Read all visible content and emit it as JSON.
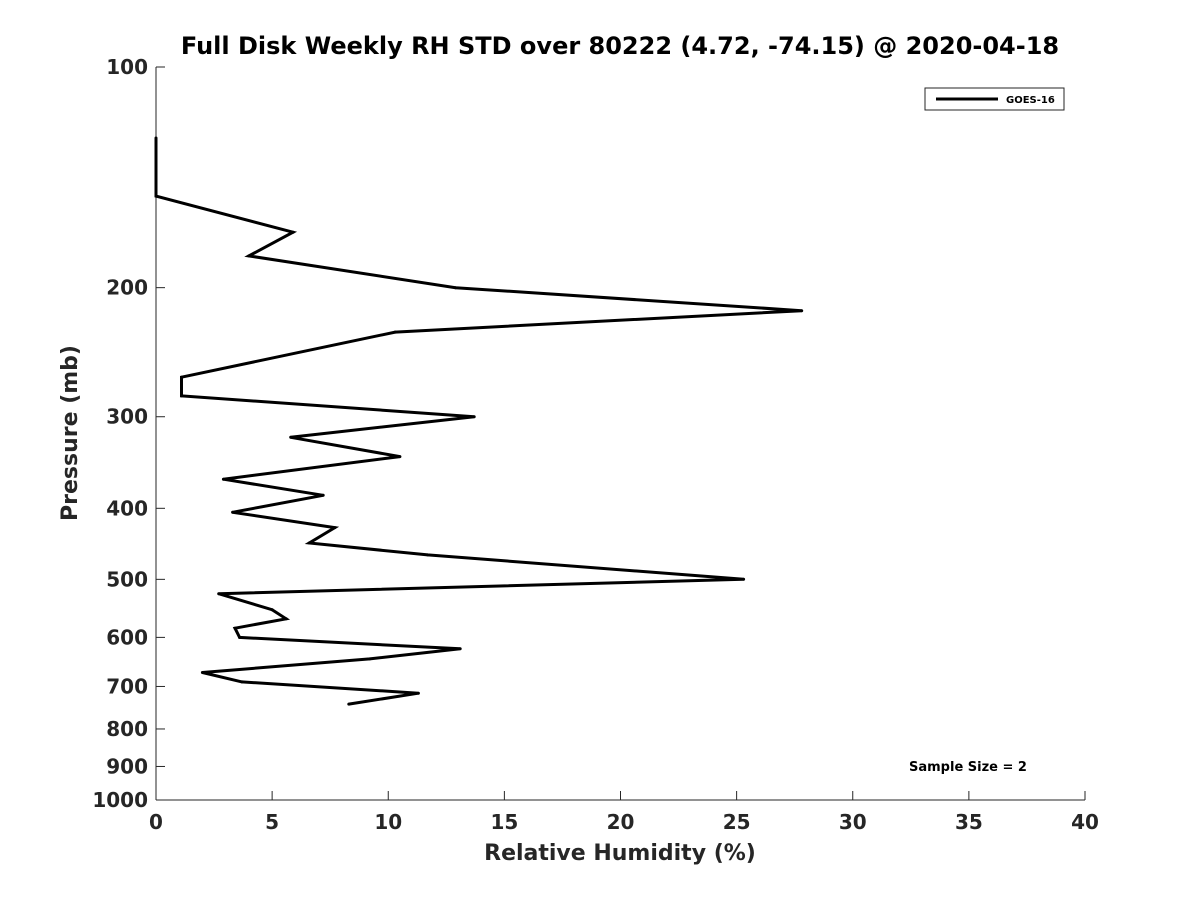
{
  "chart_data": {
    "type": "line",
    "title": "Full Disk Weekly RH STD over 80222 (4.72, -74.15) @ 2020-04-18",
    "xlabel": "Relative Humidity (%)",
    "ylabel": "Pressure (mb)",
    "xlim": [
      0,
      40
    ],
    "ylim": [
      100,
      1000
    ],
    "y_scale": "log",
    "y_reversed": true,
    "x_ticks": [
      0,
      5,
      10,
      15,
      20,
      25,
      30,
      35,
      40
    ],
    "x_tick_labels": [
      "0",
      "5",
      "10",
      "15",
      "20",
      "25",
      "30",
      "35",
      "40"
    ],
    "y_ticks": [
      100,
      200,
      300,
      400,
      500,
      600,
      700,
      800,
      900,
      1000
    ],
    "y_tick_labels": [
      "100",
      "200",
      "300",
      "400",
      "500",
      "600",
      "700",
      "800",
      "900",
      "1000"
    ],
    "grid": false,
    "legend": {
      "position": "top-right",
      "entries": [
        "GOES-16"
      ]
    },
    "annotation": "Sample Size = 2",
    "series": [
      {
        "name": "GOES-16",
        "color": "#000000",
        "points": [
          {
            "x": 0.0,
            "y": 125
          },
          {
            "x": 0.0,
            "y": 150
          },
          {
            "x": 5.9,
            "y": 168
          },
          {
            "x": 4.0,
            "y": 181
          },
          {
            "x": 12.9,
            "y": 200
          },
          {
            "x": 27.8,
            "y": 215
          },
          {
            "x": 10.3,
            "y": 230
          },
          {
            "x": 1.1,
            "y": 265
          },
          {
            "x": 1.1,
            "y": 281
          },
          {
            "x": 13.7,
            "y": 300
          },
          {
            "x": 5.8,
            "y": 320
          },
          {
            "x": 10.5,
            "y": 340
          },
          {
            "x": 2.9,
            "y": 365
          },
          {
            "x": 7.2,
            "y": 384
          },
          {
            "x": 3.3,
            "y": 405
          },
          {
            "x": 7.7,
            "y": 425
          },
          {
            "x": 6.6,
            "y": 446
          },
          {
            "x": 11.7,
            "y": 463
          },
          {
            "x": 25.3,
            "y": 500
          },
          {
            "x": 2.7,
            "y": 523
          },
          {
            "x": 5.0,
            "y": 550
          },
          {
            "x": 5.6,
            "y": 566
          },
          {
            "x": 3.4,
            "y": 583
          },
          {
            "x": 3.6,
            "y": 600
          },
          {
            "x": 13.1,
            "y": 622
          },
          {
            "x": 9.2,
            "y": 642
          },
          {
            "x": 2.0,
            "y": 670
          },
          {
            "x": 3.7,
            "y": 690
          },
          {
            "x": 11.3,
            "y": 715
          },
          {
            "x": 8.3,
            "y": 740
          }
        ]
      }
    ]
  }
}
